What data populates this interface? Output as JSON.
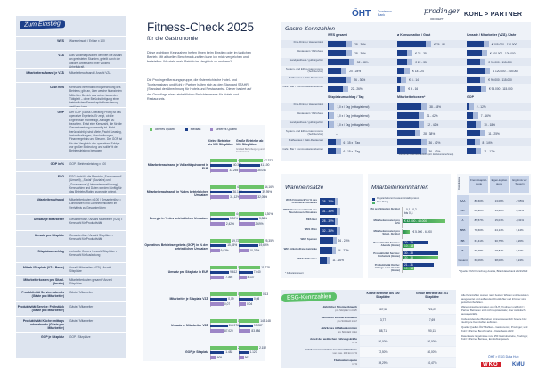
{
  "title": "Fitness-Check 2025",
  "subtitle": "für die Gastronomie",
  "intro": [
    "Diese wichtigen Kennzahlen helfen Ihnen beim Einstieg oder im täglichen Betrieb. Mit aktuellen Benchmark-zahlen kann ich mich vergleichen und feststellen: Wo steht mein Betrieb im Vergleich zu anderen?",
    "Die Prodinger Beratungsgruppe, die Österreichische Hotel- und Tourismusbank und Kohl > Partner halten sich an den Standard STAHR (Standard der Abrechnung für Hotels und Restaurants). Dieser basiert auf der Grundlage eines einheitlichen Berichtswesens für Hotels und Restaurants."
  ],
  "logos": {
    "oht": "ÖHT",
    "oht_sub": "Tourismus Bank",
    "prodinger": "prodinger",
    "prodinger_sub": "ORO DEPT",
    "kohl": "KOHL > PARTNER"
  },
  "left": {
    "heading": "Zum Einstieg",
    "rows": [
      {
        "term": "WES",
        "def": "Wareneinsatz / Erlöse x 100"
      },
      {
        "term": "VZÄ",
        "def": "Das Vollzeitäquivalent definiert die Anzahl an geleisteten Stunden, geteilt durch die übliche Arbeitszeit einer Vollzeit-Arbeitskraft."
      },
      {
        "term": "Mitarbeiteraufwand je VZÄ",
        "def": "Mitarbeiteraufwand / Anzahl VZÄ"
      },
      {
        "term": "Cash flow",
        "def": "Kennzahl innerhalb Erfolgsrechnung des Betriebs; gibt an, über welche finanziellen Mittel der Betrieb aus seiner laufenden Tätigkeit – ohne Berücksichtigung einer betrieblichen Fremdkapitalfinanzierung – verfügen kann."
      },
      {
        "term": "GOP",
        "def": "Der GOP (Gross Operating Profit) ist das operative Ergebnis. Er zeigt, ob die Ergebnisse rechtfertigt, Auflagen zu bezahlen. Er ist eine Kennzahl, die für die Gesamtwertung notwendig ist. Nicht berücksichtigt sind Miete, Pacht, Leasing, Instandhaltungen, Abschreibungen, Finanzergebnis und Steuern. Der GOP ist für den Vergleich des operativen Erfolgs vor großer Bedeutung und sollte % der Betriebsleistung betragen."
      },
      {
        "term": "GOP in %",
        "def": "GOP / Betriebsleistung x 100"
      },
      {
        "term": "ESG",
        "def": "ESG steht für die Bereiche „Environment“ (Umwelt), „Social“ (Soziales) und „Governance“ (Unternehmensführung). Kennzahlen und Daten werden künftig für das Betriebs-Rating zugrunde gelegt."
      },
      {
        "term": "Mitarbeiteraufwand",
        "def": "Mitarbeiterkosten x 100 / Gesamterlöse • Lohnkosten und Lohnnebenkosten im Verhältnis zu Gesamterlösen"
      },
      {
        "term": "Umsatz je Mitarbeiter",
        "def": "Gesamterlöse / Anzahl Mitarbeiter (VZÄ) • Kennzahl für Produktivität"
      },
      {
        "term": "Umsatz pro Sitzplatz",
        "def": "Gesamterlöse / Anzahl Sitzplätze • Kennzahl für Produktivität"
      },
      {
        "term": "Sitzplatzumschlag",
        "def": "verkaufte Covers / Anzahl Sitzplätze • Kennzahl für Auslastung"
      },
      {
        "term": "Mitarb./Sitzplatz (VZÄ-Basis)",
        "def": "Anzahl Mitarbeiter (VZÄ) / Anzahl Sitzplätze"
      },
      {
        "term": "Mitarbeiterkosten pro Sitzpl. (brutto)",
        "def": "Mitarbeiterkosten gesamt / Anzahl Sitzplätze"
      },
      {
        "term": "Produktivität Service: abends (Gäste pro Mitarbeiter)",
        "def": "Gäste / Mitarbeiter"
      },
      {
        "term": "Produktivität Service: Frühstück (Gäste pro Mitarbeiter)",
        "def": "Gäste / Mitarbeiter"
      },
      {
        "term": "Produktivität Küche: mittags oder abends (Gäste pro Mitarbeiter)",
        "def": "Gäste / Mitarbeiter"
      },
      {
        "term": "GOP je Sitzplatz",
        "def": "GOP / Sitzplätze"
      }
    ]
  },
  "mid": {
    "legend": [
      "oberes Quartil",
      "Median",
      "unteres Quartil"
    ],
    "colors": [
      "#6cc36a",
      "#1c3f8a",
      "#9d86c7"
    ],
    "col_small": "Kleine Betriebe bis 100 Sitzplätze",
    "col_large": "Große Betriebe ab 101 Sitzplätze",
    "col_large_note": "Großteil Beherbergung und Gastronomie",
    "groups": [
      {
        "label": "Mitarbeiteraufwand je Vollzeitäquivalent in EUR",
        "small": [
          "48.717",
          "40.321",
          "33.255"
        ],
        "large": [
          "47.322",
          "41.100",
          "35.041"
        ]
      },
      {
        "label": "Mitarbeiteraufwand* in % des betrieblichen Umsatzes",
        "small": [
          "42,70%",
          "36,12%",
          "31,12%"
        ],
        "large": [
          "44,16%",
          "39,95%",
          "32,05%"
        ]
      },
      {
        "label": "Energie in % des betrieblichen Umsatzes",
        "small": [
          "4,01%",
          "3,00%",
          "2,42%"
        ],
        "large": [
          "4,30%",
          "3,38%",
          "2,69%"
        ]
      },
      {
        "label": "Operatives Betriebsergebnis (GOP) in % des betrieblichen Umsatzes",
        "small": [
          "19,72%",
          "15,45%",
          "9,03%"
        ],
        "large": [
          "25,35%",
          "19,65%",
          "10,33%"
        ]
      },
      {
        "label": "Umsatz pro Sitzplatz in EUR",
        "small": [
          "13.611",
          "9.612",
          "7.366"
        ],
        "large": [
          "11.778",
          "7.640",
          "4.137"
        ]
      },
      {
        "label": "Mitarbeiter je Sitzplatz VZÄ",
        "small": [
          "0,14",
          "0,09",
          "0,07"
        ],
        "large": [
          "0,13",
          "0,08",
          "0,04"
        ]
      },
      {
        "label": "Umsatz je Mitarbeiter VZÄ",
        "small": [
          "174.575",
          "113.976",
          "87.020"
        ],
        "large": [
          "145.148",
          "99.287",
          "83.686"
        ]
      },
      {
        "label": "GOP je Sitzplatz",
        "small": [
          "2.726",
          "1.482",
          "609"
        ],
        "large": [
          "2.152",
          "1.120",
          "561"
        ]
      }
    ]
  },
  "gastro": {
    "heading": "Gastro-Kennzahlen",
    "categories": [
      "Fine-Dining-/ Haubenlokal",
      "Restaurant / Wirtshaus",
      "Landgasthaus / gutbürgerlich",
      "System- und Ethno-Gastronomie (Self-Service)",
      "Kaffeehaus / Café-Restaurant",
      "Café / Bar / Kommunikationsbetrieb"
    ],
    "top_cols": [
      {
        "h": "WES gesamt",
        "v": [
          "28 - 36%",
          "28 - 36%",
          "32 - 38%",
          "20 - 28%",
          "26 - 30%",
          "22 - 26%"
        ],
        "f": [
          0.62,
          0.62,
          0.7,
          0.45,
          0.6,
          0.5
        ]
      },
      {
        "h": "ø Konsumation / Gast",
        "v": [
          "€ 76 - 90",
          "€ 22 - 35",
          "€ 22 - 35",
          "€ 18 - 24",
          "€ 8 - 14",
          "€ 6 - 16"
        ],
        "f": [
          0.95,
          0.33,
          0.33,
          0.24,
          0.12,
          0.1
        ]
      },
      {
        "h": "Umsatz / Mitarbeiter (VZÄ) / Jahr",
        "v": [
          "€ 105.000 - 130.000",
          "€ 100.000 - 120.000",
          "€ 90.000 - 115.000",
          "€ 120.000 - 145.000",
          "€ 90.000 - 115.000",
          "€ 95.000 - 115.000"
        ],
        "f": [
          0.55,
          0.5,
          0.45,
          0.6,
          0.45,
          0.47
        ]
      }
    ],
    "bottom_cols": [
      {
        "h": "Sitzplatzumschlag / Tag",
        "v": [
          "1,0 x / Tag (mittag/abend)",
          "1,0 x / Tag (mittag/abend)",
          "1,0 x / Tag (mittag/abend)",
          "–",
          "6 - 15 x / Tag",
          "6 - 15 x / Tag"
        ],
        "f": [
          0.04,
          0.04,
          0.04,
          0,
          0.25,
          0.25
        ]
      },
      {
        "h": "Mitarbeiterkosten*",
        "v": [
          "38 - 48%",
          "31 - 42%",
          "32 - 42%",
          "28 - 38%",
          "36 - 42%",
          "36 - 42%"
        ],
        "f": [
          0.8,
          0.7,
          0.72,
          0.6,
          0.78,
          0.78
        ]
      },
      {
        "h": "GOP",
        "v": [
          "2 - 12%",
          "7 - 16%",
          "10 - 18%",
          "11 - 25%",
          "8 - 14%",
          "11 - 17%"
        ],
        "f": [
          0.05,
          0.2,
          0.3,
          0.45,
          0.25,
          0.3
        ]
      }
    ],
    "footnote": "* inkl. ohne Unternehmerlohn (ohl. Einzelunternehmen)"
  },
  "wes": {
    "heading": "Wareneinsätze",
    "rows": [
      {
        "l": "WES Frühstück* in % des Frühstück-Umsatzes",
        "v": "28 - 32%",
        "f": 0.6
      },
      {
        "l": "WES Abendessen* in % des Abendessen-Umsatzes",
        "v": "31 - 36%",
        "f": 0.68
      },
      {
        "l": "WES Bier",
        "v": "28 - 32%",
        "f": 0.6
      },
      {
        "l": "WES Wein",
        "v": "32 - 36%",
        "f": 0.68
      },
      {
        "l": "WES Speisen",
        "v": "26 - 28%",
        "f": 0.52
      },
      {
        "l": "WES Alkoholfreie Getränke",
        "v": "24 - 27%",
        "f": 0.5
      },
      {
        "l": "WES Kaffee/Tee",
        "v": "11 - 16%",
        "f": 0.3
      }
    ],
    "footnote": "* Kalkulationswert"
  },
  "ma": {
    "heading": "Mitarbeiterkennzahlen",
    "legend": [
      "Regelarbeitszeit Restaurant/Halbpension",
      "Fine Dining"
    ],
    "rows": [
      {
        "l": "MA pro Sitzplatz (brutto)",
        "a": "0,1 - 0,2",
        "b": "bis 0,3",
        "fa": 0,
        "fb": 0
      },
      {
        "l": "Mitarbeiterkosten pro VZÄ",
        "a": "€ 42.000 - 48.000",
        "b": "",
        "fa": 0,
        "fb": 0.95
      },
      {
        "l": "Mitarbeiterkosten pro Sitzpl. (brutto)",
        "a": "€ 5.000 - 6.200",
        "b": "",
        "fa": 0,
        "fb": 0.15
      },
      {
        "l": "Produktivität Service: Abends (Gäste)",
        "a": "20 - 25",
        "b": "10 - 13",
        "fa": 0.55,
        "fb": 0.25
      },
      {
        "l": "Produktivität Service: Frühstück (Gäste)",
        "a": "30 - 33",
        "b": "30 - 33",
        "fa": 0.8,
        "fb": 0.8
      },
      {
        "l": "Produktivität Küche: mittags oder abends (Gäste)",
        "a": "21 - 31",
        "b": "10 - 13",
        "fa": 0.7,
        "fb": 0.25
      }
    ]
  },
  "rating": {
    "corner": "Ratingklasse",
    "headers": [
      "Fremd-kapital-quote",
      "Eigen-kapital-quote",
      "Ergebnis vor Steuern"
    ],
    "rows": [
      [
        "AAA",
        "86,60%",
        "13,06%",
        "-7,65%"
      ],
      [
        "AA",
        "80,90%",
        "19,20%",
        "-2,41%"
      ],
      [
        "A",
        "85,57%",
        "15,01%",
        "-0,31%"
      ],
      [
        "BBB",
        "78,60%",
        "24,14%",
        "3,14%"
      ],
      [
        "BB",
        "67,41%",
        "30,75%",
        "4,26%"
      ],
      [
        "B",
        "68,78%",
        "28,81%",
        "3,72%"
      ],
      [
        "Gesamt",
        "60,06%",
        "38,00%",
        "3,24%"
      ]
    ],
    "footnote": "* Quelle: KMU Forschung Austria, Bilanzdatenbank 2022/2023"
  },
  "esg": {
    "heading": "ESG-Kennzahlen",
    "col_small": "Kleine Betriebe bis 100 Sitzplätze",
    "col_large": "Große Betriebe ab 101 Sitzplätze",
    "rows": [
      {
        "l": "Jährlicher Stromverbrauch",
        "s": "pro Sitzplatz in kWh",
        "a": "987,58",
        "b": "725,29"
      },
      {
        "l": "Jährlicher Wasserverbrauch",
        "s": "pro Sitzplatz in m³",
        "a": "3,77",
        "b": "7,69"
      },
      {
        "l": "Jährliches Abfallaufkommen",
        "s": "pro Sitzplatz in kg",
        "a": "88,71",
        "b": "90,11"
      },
      {
        "l": "Anteil der weiblichen Führungskräfte",
        "s": "in %",
        "a": "50,00%",
        "b": "50,00%"
      },
      {
        "l": "Anteil der Lieferanten aus einem Umkreis",
        "s": "von max. 100 km in %",
        "a": "72,50%",
        "b": "80,00%"
      },
      {
        "l": "Fluktuationsquote",
        "s": "in %",
        "a": "39,29%",
        "b": "10,47%"
      }
    ]
  },
  "notes": [
    "Alle Kennzahlen wurden nach bestem Wissen und Gewissen ausgewertet und aufbereitet. Druckfehler und Irrtümer sind jedoch vorbehalten.",
    "Wareneinsatzkennzahlen von ÖHT, Prodinger und Kohl > Partner Betrieben sind nicht repräsentativ, aber statistisch aussagekräftig.",
    "Insbesondere bei Betrieben können wesentlich höhere bzw. niedrigere Kennzahlen auftreten.",
    "Quelle: Quellen ÖHT Zahlen – Gastronomie; Prodinger; und Kohl > Partner Benchmarks – Datenbasis 2023",
    "Datenbasis: Ergebnisse rund 250 Gastrobetriebe, Prodinger, Kohl > Partner Betriebe, Empfehlungswerte"
  ],
  "esg_link": "ÖHT > ESG Data Hub",
  "wko": "WKO",
  "kmu": "KMU"
}
